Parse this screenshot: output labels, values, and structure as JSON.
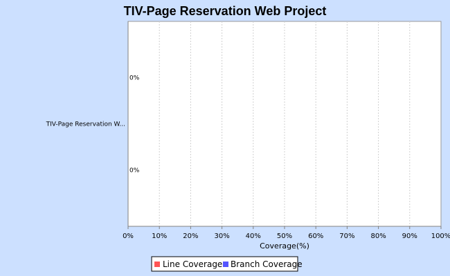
{
  "chart_data": {
    "type": "bar",
    "orientation": "horizontal",
    "title": "TIV-Page Reservation Web Project",
    "xlabel": "Coverage(%)",
    "ylabel": "",
    "categories": [
      "TIV-Page Reservation W..."
    ],
    "series": [
      {
        "name": "Line Coverage",
        "color": "#ff5555",
        "values": [
          0
        ],
        "labels": [
          "0%"
        ]
      },
      {
        "name": "Branch Coverage",
        "color": "#5555ff",
        "values": [
          0
        ],
        "labels": [
          "0%"
        ]
      }
    ],
    "xlim": [
      0,
      100
    ],
    "xticks": [
      0,
      10,
      20,
      30,
      40,
      50,
      60,
      70,
      80,
      90,
      100
    ],
    "xtick_labels": [
      "0%",
      "10%",
      "20%",
      "30%",
      "40%",
      "50%",
      "60%",
      "70%",
      "80%",
      "90%",
      "100%"
    ],
    "grid": "vertical dashed",
    "legend_position": "bottom",
    "colors": {
      "background": "#cce0ff",
      "plot_background": "#ffffff",
      "grid": "#d0d0d0"
    }
  }
}
